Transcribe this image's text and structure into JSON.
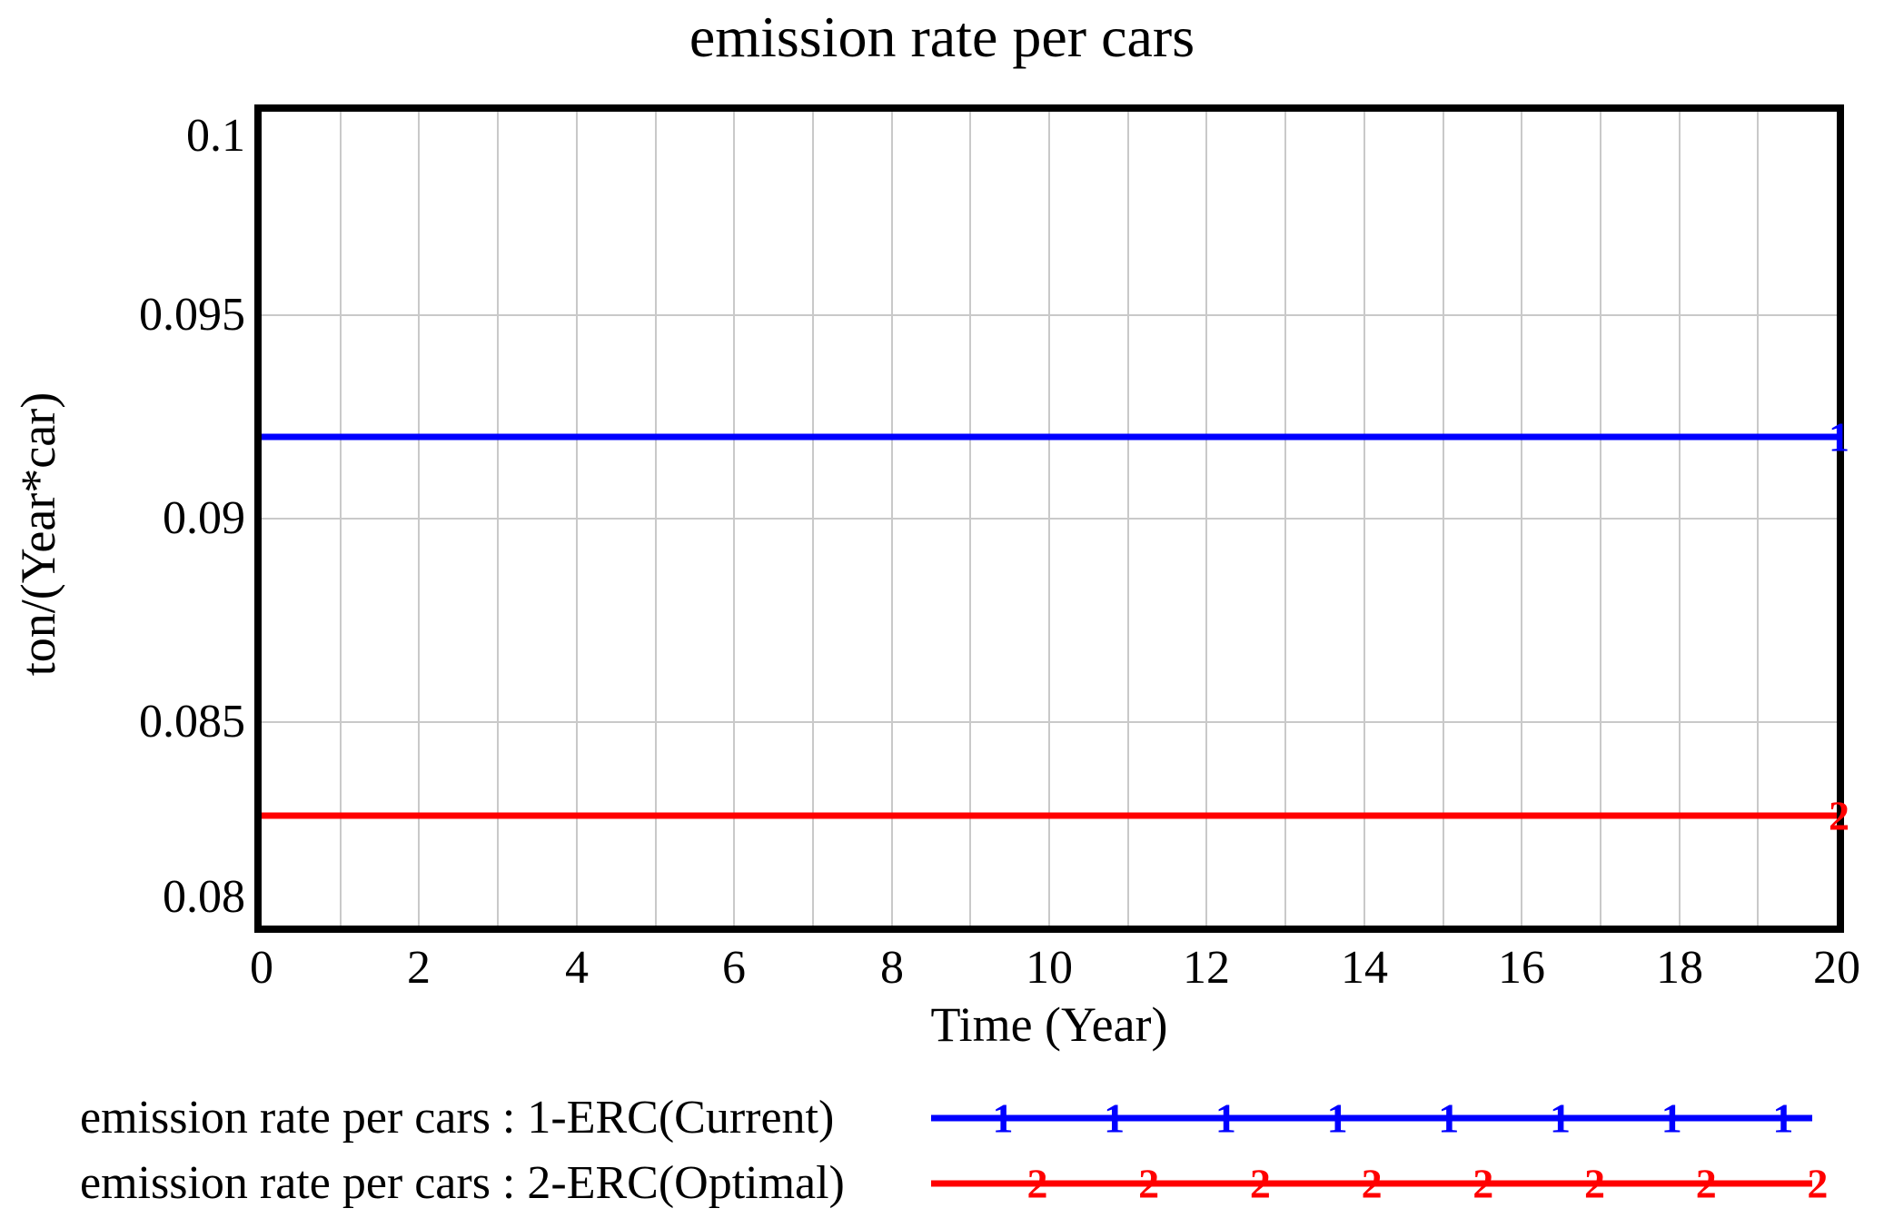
{
  "title": "emission rate per cars",
  "y_axis": {
    "label": "ton/(Year*car)",
    "ticks": [
      "0.1",
      "0.095",
      "0.09",
      "0.085",
      "0.08"
    ]
  },
  "x_axis": {
    "label": "Time (Year)",
    "ticks": [
      "0",
      "2",
      "4",
      "6",
      "8",
      "10",
      "12",
      "14",
      "16",
      "18",
      "20"
    ]
  },
  "chart_data": {
    "type": "line",
    "title": "emission rate per cars",
    "xlabel": "Time (Year)",
    "ylabel": "ton/(Year*car)",
    "xlim": [
      0,
      20
    ],
    "ylim": [
      0.08,
      0.1
    ],
    "x_ticks": [
      0,
      2,
      4,
      6,
      8,
      10,
      12,
      14,
      16,
      18,
      20
    ],
    "y_ticks": [
      0.1,
      0.095,
      0.09,
      0.085,
      0.08
    ],
    "grid": true,
    "grid_x_interval": 1,
    "grid_y_interval": 0.005,
    "legend_position": "bottom",
    "x": [
      0,
      20
    ],
    "series": [
      {
        "name": "emission rate per cars : 1-ERC(Current)",
        "marker": "1",
        "color": "#0000ff",
        "values": [
          0.092,
          0.092
        ]
      },
      {
        "name": "emission rate per cars : 2-ERC(Optimal)",
        "marker": "2",
        "color": "#ff0000",
        "values": [
          0.0827,
          0.0827
        ]
      }
    ]
  },
  "colors": {
    "series1": "#0000ff",
    "series2": "#ff0000",
    "grid": "#c9c9c9",
    "frame": "#000000",
    "background": "#ffffff"
  }
}
